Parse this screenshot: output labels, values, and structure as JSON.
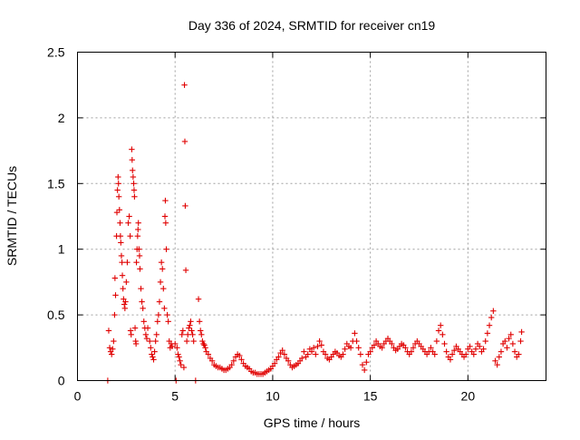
{
  "chart_data": {
    "type": "scatter",
    "title": "Day 336 of 2024, SRMTID for receiver cn19",
    "xlabel": "GPS time / hours",
    "ylabel": "SRMTID / TECUs",
    "xlim": [
      0,
      24
    ],
    "ylim": [
      0,
      2.5
    ],
    "xticks": [
      0,
      5,
      10,
      15,
      20
    ],
    "yticks": [
      0,
      0.5,
      1,
      1.5,
      2,
      2.5
    ],
    "xtick_labels": [
      "0",
      "5",
      "10",
      "15",
      "20"
    ],
    "ytick_labels": [
      "0",
      "0.5",
      "1",
      "1.5",
      "2",
      "2.5"
    ],
    "grid": true,
    "marker": "+",
    "color": "#e00000",
    "series": [
      {
        "name": "SRMTID",
        "points": [
          [
            1.55,
            0.0
          ],
          [
            1.6,
            0.38
          ],
          [
            1.65,
            0.25
          ],
          [
            1.7,
            0.22
          ],
          [
            1.75,
            0.2
          ],
          [
            1.8,
            0.24
          ],
          [
            1.85,
            0.3
          ],
          [
            1.9,
            0.5
          ],
          [
            1.92,
            0.78
          ],
          [
            1.95,
            0.65
          ],
          [
            2.0,
            1.1
          ],
          [
            2.02,
            1.28
          ],
          [
            2.05,
            1.45
          ],
          [
            2.08,
            1.55
          ],
          [
            2.1,
            1.5
          ],
          [
            2.12,
            1.4
          ],
          [
            2.15,
            1.3
          ],
          [
            2.18,
            1.2
          ],
          [
            2.2,
            1.1
          ],
          [
            2.22,
            1.05
          ],
          [
            2.25,
            0.95
          ],
          [
            2.28,
            0.9
          ],
          [
            2.3,
            0.8
          ],
          [
            2.33,
            0.7
          ],
          [
            2.36,
            0.62
          ],
          [
            2.4,
            0.58
          ],
          [
            2.43,
            0.55
          ],
          [
            2.46,
            0.6
          ],
          [
            2.5,
            0.75
          ],
          [
            2.55,
            0.9
          ],
          [
            2.6,
            1.2
          ],
          [
            2.65,
            1.25
          ],
          [
            2.7,
            1.1
          ],
          [
            2.72,
            0.38
          ],
          [
            2.75,
            0.35
          ],
          [
            2.78,
            1.76
          ],
          [
            2.8,
            1.68
          ],
          [
            2.82,
            1.6
          ],
          [
            2.85,
            1.55
          ],
          [
            2.88,
            1.5
          ],
          [
            2.9,
            1.45
          ],
          [
            2.92,
            1.4
          ],
          [
            2.95,
            0.4
          ],
          [
            2.98,
            0.3
          ],
          [
            3.0,
            0.28
          ],
          [
            3.02,
            0.9
          ],
          [
            3.05,
            1.0
          ],
          [
            3.08,
            1.1
          ],
          [
            3.1,
            1.15
          ],
          [
            3.12,
            1.2
          ],
          [
            3.15,
            1.0
          ],
          [
            3.18,
            0.95
          ],
          [
            3.2,
            0.85
          ],
          [
            3.25,
            0.7
          ],
          [
            3.3,
            0.6
          ],
          [
            3.35,
            0.55
          ],
          [
            3.4,
            0.45
          ],
          [
            3.45,
            0.4
          ],
          [
            3.5,
            0.35
          ],
          [
            3.55,
            0.32
          ],
          [
            3.6,
            0.4
          ],
          [
            3.7,
            0.3
          ],
          [
            3.75,
            0.25
          ],
          [
            3.8,
            0.2
          ],
          [
            3.85,
            0.18
          ],
          [
            3.9,
            0.16
          ],
          [
            3.95,
            0.22
          ],
          [
            4.0,
            0.3
          ],
          [
            4.05,
            0.35
          ],
          [
            4.1,
            0.45
          ],
          [
            4.15,
            0.5
          ],
          [
            4.2,
            0.6
          ],
          [
            4.25,
            0.75
          ],
          [
            4.3,
            0.9
          ],
          [
            4.35,
            0.85
          ],
          [
            4.4,
            0.7
          ],
          [
            4.45,
            0.55
          ],
          [
            4.48,
            1.25
          ],
          [
            4.5,
            1.37
          ],
          [
            4.52,
            1.2
          ],
          [
            4.55,
            1.0
          ],
          [
            4.6,
            0.5
          ],
          [
            4.65,
            0.45
          ],
          [
            4.7,
            0.3
          ],
          [
            4.75,
            0.25
          ],
          [
            4.8,
            0.28
          ],
          [
            4.85,
            0.26
          ],
          [
            5.0,
            0.28
          ],
          [
            5.05,
            0.0
          ],
          [
            5.1,
            0.25
          ],
          [
            5.15,
            0.2
          ],
          [
            5.2,
            0.18
          ],
          [
            5.25,
            0.15
          ],
          [
            5.3,
            0.12
          ],
          [
            5.35,
            0.35
          ],
          [
            5.4,
            0.38
          ],
          [
            5.45,
            0.1
          ],
          [
            5.48,
            2.25
          ],
          [
            5.5,
            1.82
          ],
          [
            5.52,
            1.33
          ],
          [
            5.55,
            0.84
          ],
          [
            5.6,
            0.3
          ],
          [
            5.65,
            0.35
          ],
          [
            5.7,
            0.4
          ],
          [
            5.75,
            0.42
          ],
          [
            5.8,
            0.45
          ],
          [
            5.85,
            0.38
          ],
          [
            5.9,
            0.35
          ],
          [
            5.95,
            0.3
          ],
          [
            6.05,
            0.0
          ],
          [
            6.2,
            0.62
          ],
          [
            6.25,
            0.45
          ],
          [
            6.3,
            0.38
          ],
          [
            6.35,
            0.35
          ],
          [
            6.4,
            0.3
          ],
          [
            6.45,
            0.28
          ],
          [
            6.5,
            0.27
          ],
          [
            6.55,
            0.25
          ],
          [
            6.6,
            0.22
          ],
          [
            6.7,
            0.2
          ],
          [
            6.8,
            0.17
          ],
          [
            6.9,
            0.15
          ],
          [
            7.0,
            0.12
          ],
          [
            7.1,
            0.11
          ],
          [
            7.2,
            0.1
          ],
          [
            7.3,
            0.1
          ],
          [
            7.4,
            0.09
          ],
          [
            7.5,
            0.08
          ],
          [
            7.6,
            0.08
          ],
          [
            7.7,
            0.09
          ],
          [
            7.8,
            0.1
          ],
          [
            7.9,
            0.12
          ],
          [
            8.0,
            0.15
          ],
          [
            8.1,
            0.18
          ],
          [
            8.2,
            0.2
          ],
          [
            8.3,
            0.19
          ],
          [
            8.4,
            0.16
          ],
          [
            8.5,
            0.13
          ],
          [
            8.6,
            0.11
          ],
          [
            8.7,
            0.1
          ],
          [
            8.8,
            0.09
          ],
          [
            8.9,
            0.07
          ],
          [
            9.0,
            0.06
          ],
          [
            9.1,
            0.06
          ],
          [
            9.2,
            0.05
          ],
          [
            9.3,
            0.05
          ],
          [
            9.4,
            0.05
          ],
          [
            9.5,
            0.05
          ],
          [
            9.6,
            0.06
          ],
          [
            9.7,
            0.07
          ],
          [
            9.8,
            0.08
          ],
          [
            9.9,
            0.09
          ],
          [
            10.0,
            0.11
          ],
          [
            10.1,
            0.13
          ],
          [
            10.2,
            0.16
          ],
          [
            10.3,
            0.18
          ],
          [
            10.4,
            0.21
          ],
          [
            10.5,
            0.23
          ],
          [
            10.6,
            0.2
          ],
          [
            10.7,
            0.17
          ],
          [
            10.8,
            0.15
          ],
          [
            10.9,
            0.12
          ],
          [
            11.0,
            0.1
          ],
          [
            11.1,
            0.11
          ],
          [
            11.2,
            0.12
          ],
          [
            11.3,
            0.13
          ],
          [
            11.4,
            0.15
          ],
          [
            11.5,
            0.17
          ],
          [
            11.6,
            0.22
          ],
          [
            11.7,
            0.18
          ],
          [
            11.8,
            0.2
          ],
          [
            11.9,
            0.24
          ],
          [
            12.0,
            0.22
          ],
          [
            12.1,
            0.25
          ],
          [
            12.2,
            0.2
          ],
          [
            12.3,
            0.26
          ],
          [
            12.4,
            0.3
          ],
          [
            12.5,
            0.27
          ],
          [
            12.6,
            0.22
          ],
          [
            12.7,
            0.2
          ],
          [
            12.8,
            0.17
          ],
          [
            12.9,
            0.16
          ],
          [
            13.0,
            0.18
          ],
          [
            13.1,
            0.2
          ],
          [
            13.2,
            0.22
          ],
          [
            13.3,
            0.21
          ],
          [
            13.4,
            0.19
          ],
          [
            13.5,
            0.18
          ],
          [
            13.6,
            0.2
          ],
          [
            13.7,
            0.24
          ],
          [
            13.8,
            0.28
          ],
          [
            13.9,
            0.26
          ],
          [
            14.0,
            0.25
          ],
          [
            14.1,
            0.3
          ],
          [
            14.2,
            0.36
          ],
          [
            14.3,
            0.3
          ],
          [
            14.4,
            0.25
          ],
          [
            14.5,
            0.2
          ],
          [
            14.6,
            0.12
          ],
          [
            14.7,
            0.08
          ],
          [
            14.8,
            0.14
          ],
          [
            14.9,
            0.2
          ],
          [
            15.0,
            0.22
          ],
          [
            15.1,
            0.25
          ],
          [
            15.2,
            0.27
          ],
          [
            15.3,
            0.3
          ],
          [
            15.4,
            0.28
          ],
          [
            15.5,
            0.26
          ],
          [
            15.6,
            0.25
          ],
          [
            15.7,
            0.28
          ],
          [
            15.8,
            0.3
          ],
          [
            15.9,
            0.32
          ],
          [
            16.0,
            0.3
          ],
          [
            16.1,
            0.28
          ],
          [
            16.2,
            0.25
          ],
          [
            16.3,
            0.23
          ],
          [
            16.4,
            0.24
          ],
          [
            16.5,
            0.26
          ],
          [
            16.6,
            0.28
          ],
          [
            16.7,
            0.27
          ],
          [
            16.8,
            0.25
          ],
          [
            16.9,
            0.22
          ],
          [
            17.0,
            0.2
          ],
          [
            17.1,
            0.22
          ],
          [
            17.2,
            0.25
          ],
          [
            17.3,
            0.28
          ],
          [
            17.4,
            0.3
          ],
          [
            17.5,
            0.28
          ],
          [
            17.6,
            0.26
          ],
          [
            17.7,
            0.24
          ],
          [
            17.8,
            0.22
          ],
          [
            17.9,
            0.2
          ],
          [
            18.0,
            0.22
          ],
          [
            18.1,
            0.25
          ],
          [
            18.2,
            0.22
          ],
          [
            18.3,
            0.2
          ],
          [
            18.4,
            0.3
          ],
          [
            18.5,
            0.38
          ],
          [
            18.6,
            0.42
          ],
          [
            18.7,
            0.35
          ],
          [
            18.8,
            0.28
          ],
          [
            18.9,
            0.22
          ],
          [
            19.0,
            0.18
          ],
          [
            19.1,
            0.16
          ],
          [
            19.2,
            0.2
          ],
          [
            19.3,
            0.23
          ],
          [
            19.4,
            0.26
          ],
          [
            19.5,
            0.24
          ],
          [
            19.6,
            0.22
          ],
          [
            19.7,
            0.2
          ],
          [
            19.8,
            0.18
          ],
          [
            19.9,
            0.2
          ],
          [
            20.0,
            0.24
          ],
          [
            20.1,
            0.26
          ],
          [
            20.2,
            0.22
          ],
          [
            20.3,
            0.2
          ],
          [
            20.4,
            0.24
          ],
          [
            20.5,
            0.28
          ],
          [
            20.6,
            0.26
          ],
          [
            20.7,
            0.22
          ],
          [
            20.8,
            0.24
          ],
          [
            20.9,
            0.3
          ],
          [
            21.0,
            0.36
          ],
          [
            21.1,
            0.42
          ],
          [
            21.2,
            0.48
          ],
          [
            21.3,
            0.53
          ],
          [
            21.4,
            0.15
          ],
          [
            21.5,
            0.12
          ],
          [
            21.6,
            0.18
          ],
          [
            21.7,
            0.22
          ],
          [
            21.8,
            0.28
          ],
          [
            21.9,
            0.3
          ],
          [
            22.0,
            0.25
          ],
          [
            22.1,
            0.32
          ],
          [
            22.2,
            0.35
          ],
          [
            22.3,
            0.28
          ],
          [
            22.4,
            0.22
          ],
          [
            22.5,
            0.18
          ],
          [
            22.6,
            0.2
          ],
          [
            22.7,
            0.3
          ],
          [
            22.75,
            0.37
          ]
        ]
      }
    ]
  }
}
